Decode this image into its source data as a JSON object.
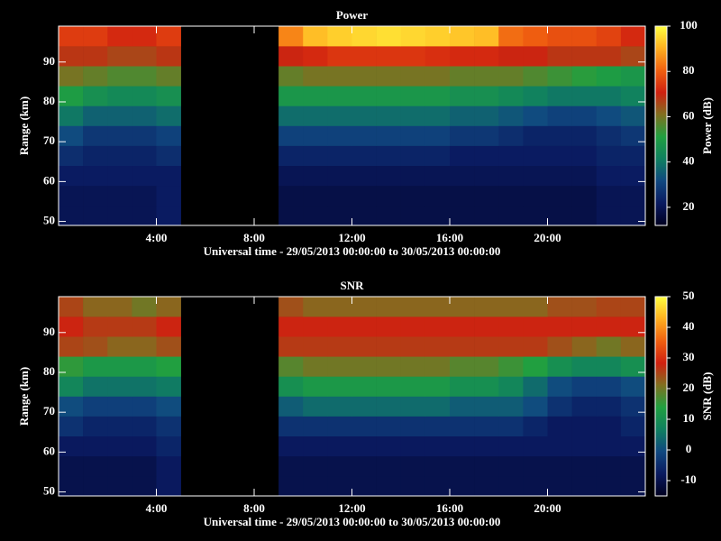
{
  "chart_data": [
    {
      "type": "heatmap",
      "title": "Power",
      "xlabel": "Universal time - 29/05/2013 00:00:00 to 30/05/2013 00:00:00",
      "ylabel": "Range (km)",
      "colorbar_label": "Power (dB)",
      "xlim": [
        0,
        24
      ],
      "ylim": [
        49,
        99
      ],
      "xticks": [
        {
          "value": 4,
          "label": "4:00"
        },
        {
          "value": 8,
          "label": "8:00"
        },
        {
          "value": 12,
          "label": "12:00"
        },
        {
          "value": 16,
          "label": "16:00"
        },
        {
          "value": 20,
          "label": "20:00"
        }
      ],
      "yticks": [
        50,
        60,
        70,
        80,
        90
      ],
      "x_bins": [
        0,
        1,
        2,
        3,
        4,
        5,
        6,
        7,
        8,
        9,
        10,
        11,
        12,
        13,
        14,
        15,
        16,
        17,
        18,
        19,
        20,
        21,
        22,
        23,
        24
      ],
      "y_bins": [
        49,
        54,
        59,
        64,
        69,
        74,
        79,
        84,
        89,
        94,
        99
      ],
      "zlim": [
        12,
        100
      ],
      "zticks": [
        20,
        40,
        60,
        80,
        100
      ],
      "colormap": [
        "#000020",
        "#0a1a60",
        "#104880",
        "#108060",
        "#20a040",
        "#807020",
        "#d02010",
        "#f06010",
        "#ffb020",
        "#ffff40"
      ],
      "z": [
        [
          20,
          20,
          20,
          20,
          22,
          null,
          null,
          null,
          null,
          18,
          18,
          18,
          18,
          18,
          18,
          18,
          18,
          18,
          18,
          18,
          18,
          18,
          20,
          20
        ],
        [
          20,
          20,
          20,
          20,
          22,
          null,
          null,
          null,
          null,
          18,
          18,
          18,
          18,
          18,
          18,
          18,
          18,
          18,
          18,
          18,
          18,
          18,
          20,
          20
        ],
        [
          22,
          22,
          22,
          22,
          22,
          null,
          null,
          null,
          null,
          20,
          20,
          20,
          20,
          20,
          20,
          20,
          20,
          20,
          20,
          20,
          20,
          20,
          22,
          22
        ],
        [
          26,
          24,
          24,
          24,
          26,
          null,
          null,
          null,
          null,
          24,
          24,
          24,
          24,
          24,
          24,
          24,
          22,
          22,
          22,
          22,
          22,
          22,
          24,
          24
        ],
        [
          32,
          28,
          28,
          28,
          30,
          null,
          null,
          null,
          null,
          30,
          30,
          30,
          30,
          30,
          30,
          30,
          28,
          28,
          26,
          24,
          24,
          24,
          26,
          28
        ],
        [
          40,
          36,
          36,
          36,
          38,
          null,
          null,
          null,
          null,
          38,
          38,
          38,
          38,
          38,
          38,
          38,
          36,
          36,
          34,
          32,
          30,
          30,
          32,
          34
        ],
        [
          50,
          46,
          44,
          44,
          46,
          null,
          null,
          null,
          null,
          48,
          48,
          48,
          48,
          48,
          48,
          48,
          46,
          46,
          44,
          42,
          40,
          40,
          40,
          42
        ],
        [
          60,
          58,
          56,
          56,
          58,
          null,
          null,
          null,
          null,
          58,
          60,
          60,
          60,
          60,
          60,
          60,
          58,
          58,
          58,
          56,
          54,
          52,
          50,
          48
        ],
        [
          68,
          68,
          66,
          66,
          68,
          null,
          null,
          null,
          null,
          70,
          72,
          74,
          74,
          74,
          74,
          73,
          72,
          72,
          70,
          70,
          68,
          68,
          68,
          66
        ],
        [
          75,
          75,
          72,
          72,
          75,
          null,
          null,
          null,
          null,
          85,
          92,
          94,
          95,
          96,
          95,
          94,
          93,
          92,
          82,
          80,
          78,
          78,
          76,
          72
        ]
      ]
    },
    {
      "type": "heatmap",
      "title": "SNR",
      "xlabel": "Universal time - 29/05/2013 00:00:00 to 30/05/2013 00:00:00",
      "ylabel": "Range (km)",
      "colorbar_label": "SNR (dB)",
      "xlim": [
        0,
        24
      ],
      "ylim": [
        49,
        99
      ],
      "xticks": [
        {
          "value": 4,
          "label": "4:00"
        },
        {
          "value": 8,
          "label": "8:00"
        },
        {
          "value": 12,
          "label": "12:00"
        },
        {
          "value": 16,
          "label": "16:00"
        },
        {
          "value": 20,
          "label": "20:00"
        }
      ],
      "yticks": [
        50,
        60,
        70,
        80,
        90
      ],
      "x_bins": [
        0,
        1,
        2,
        3,
        4,
        5,
        6,
        7,
        8,
        9,
        10,
        11,
        12,
        13,
        14,
        15,
        16,
        17,
        18,
        19,
        20,
        21,
        22,
        23,
        24
      ],
      "y_bins": [
        49,
        54,
        59,
        64,
        69,
        74,
        79,
        84,
        89,
        94,
        99
      ],
      "zlim": [
        -15,
        50
      ],
      "zticks": [
        -10,
        0,
        10,
        20,
        30,
        40,
        50
      ],
      "colormap": [
        "#000020",
        "#0a1a60",
        "#104880",
        "#108060",
        "#20a040",
        "#807020",
        "#d02010",
        "#f06010",
        "#ffb020",
        "#ffff40"
      ],
      "z": [
        [
          -10,
          -10,
          -10,
          -10,
          -8,
          null,
          null,
          null,
          null,
          -10,
          -10,
          -10,
          -10,
          -10,
          -10,
          -10,
          -10,
          -10,
          -10,
          -10,
          -10,
          -10,
          -10,
          -10
        ],
        [
          -10,
          -10,
          -10,
          -10,
          -8,
          null,
          null,
          null,
          null,
          -10,
          -10,
          -10,
          -10,
          -10,
          -10,
          -10,
          -10,
          -10,
          -10,
          -10,
          -10,
          -10,
          -10,
          -10
        ],
        [
          -8,
          -8,
          -8,
          -8,
          -6,
          null,
          null,
          null,
          null,
          -8,
          -8,
          -8,
          -8,
          -8,
          -8,
          -8,
          -8,
          -8,
          -8,
          -8,
          -8,
          -8,
          -8,
          -8
        ],
        [
          -4,
          -6,
          -6,
          -6,
          -4,
          null,
          null,
          null,
          null,
          -4,
          -4,
          -4,
          -4,
          -4,
          -4,
          -4,
          -4,
          -4,
          -4,
          -6,
          -8,
          -8,
          -8,
          -6
        ],
        [
          0,
          -2,
          -2,
          -2,
          0,
          null,
          null,
          null,
          null,
          2,
          4,
          4,
          4,
          4,
          4,
          4,
          2,
          2,
          2,
          0,
          -4,
          -6,
          -6,
          -4
        ],
        [
          8,
          5,
          5,
          5,
          6,
          null,
          null,
          null,
          null,
          10,
          12,
          12,
          12,
          12,
          12,
          12,
          10,
          10,
          8,
          4,
          0,
          -2,
          -2,
          0
        ],
        [
          15,
          12,
          12,
          12,
          14,
          null,
          null,
          null,
          null,
          18,
          20,
          20,
          20,
          20,
          20,
          20,
          18,
          18,
          16,
          14,
          10,
          8,
          8,
          10
        ],
        [
          25,
          24,
          22,
          22,
          24,
          null,
          null,
          null,
          null,
          26,
          26,
          26,
          26,
          26,
          26,
          26,
          26,
          26,
          26,
          26,
          24,
          22,
          20,
          22
        ],
        [
          28,
          26,
          26,
          26,
          28,
          null,
          null,
          null,
          null,
          28,
          28,
          28,
          28,
          28,
          28,
          28,
          28,
          28,
          28,
          28,
          28,
          28,
          28,
          28
        ],
        [
          25,
          22,
          22,
          20,
          22,
          null,
          null,
          null,
          null,
          24,
          22,
          22,
          22,
          22,
          22,
          22,
          22,
          22,
          22,
          22,
          24,
          24,
          25,
          25
        ]
      ]
    }
  ]
}
